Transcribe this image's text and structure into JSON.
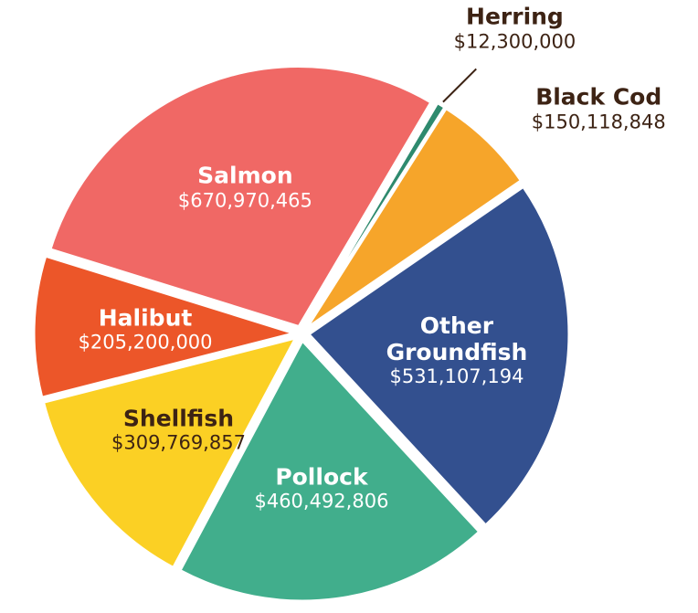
{
  "chart_data": {
    "type": "pie",
    "categories": [
      "Herring",
      "Black Cod",
      "Other Groundfish",
      "Pollock",
      "Shellfish",
      "Halibut",
      "Salmon"
    ],
    "values": [
      12300000,
      150118848,
      531107194,
      460492806,
      309769857,
      205200000,
      670970465
    ],
    "value_labels": [
      "$12,300,000",
      "$150,118,848",
      "$531,107,194",
      "$460,492,806",
      "$309,769,857",
      "$205,200,000",
      "$670,970,465"
    ],
    "colors": [
      "#2e8a6e",
      "#f6a52a",
      "#33508f",
      "#41ae8c",
      "#fbd024",
      "#ec5629",
      "#f06865"
    ]
  }
}
